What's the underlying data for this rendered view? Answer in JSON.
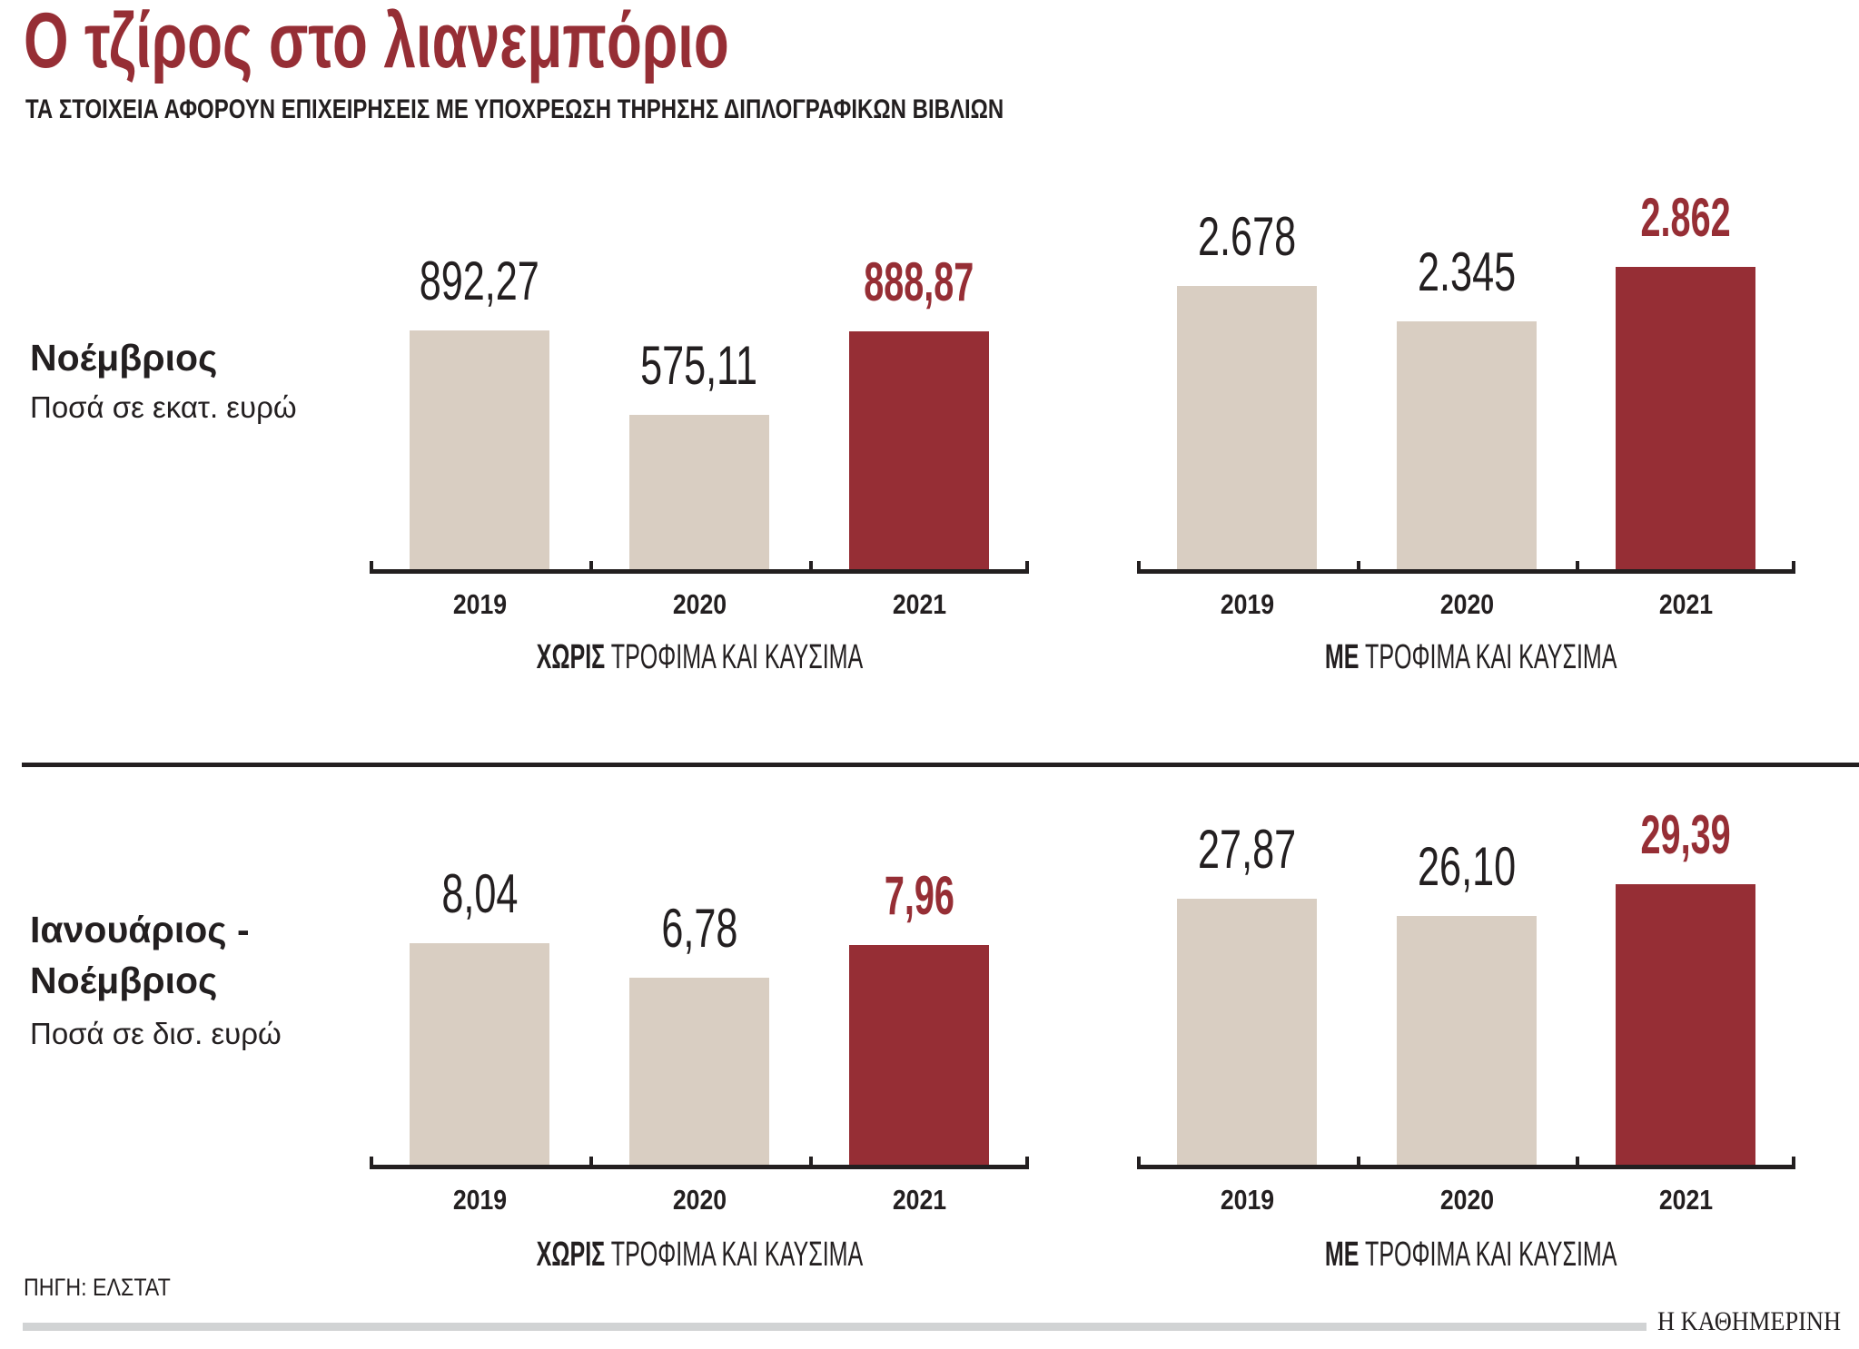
{
  "header": {
    "title": "Ο τζίρος στο λιανεμπόριο",
    "subtitle": "ΤΑ ΣΤΟΙΧΕΙΑ ΑΦΟΡΟΥΝ ΕΠΙΧΕΙΡΗΣΕΙΣ ΜΕ ΥΠΟΧΡΕΩΣΗ ΤΗΡΗΣΗΣ ΔΙΠΛΟΓΡΑΦΙΚΩΝ ΒΙΒΛΙΩΝ"
  },
  "rows": [
    {
      "label_line1": "Νοέμβριος",
      "label_line2": "",
      "unit": "Ποσά σε εκατ. ευρώ"
    },
    {
      "label_line1": "Ιανουάριος -",
      "label_line2": "Νοέμβριος",
      "unit": "Ποσά σε δισ. ευρώ"
    }
  ],
  "captions": {
    "without_bold": "ΧΩΡΙΣ",
    "with_bold": "ΜΕ",
    "rest": " ΤΡΟΦΙΜΑ ΚΑΙ ΚΑΥΣΙΜΑ"
  },
  "colors": {
    "accent": "#962e35",
    "bar_normal": "#d9cec2",
    "text": "#231f20",
    "footer_bar": "#d1d3d4"
  },
  "footer": {
    "source": "ΠΗΓΗ: ΕΛΣΤΑΤ",
    "logo": "Η ΚΑΘΗΜΕΡΙΝΗ"
  },
  "chart_data": [
    {
      "type": "bar",
      "title": "Νοέμβριος — ΧΩΡΙΣ ΤΡΟΦΙΜΑ ΚΑΙ ΚΑΥΣΙΜΑ",
      "ylabel": "Ποσά σε εκατ. ευρώ",
      "xlabel": "ΧΩΡΙΣ ΤΡΟΦΙΜΑ ΚΑΙ ΚΑΥΣΙΜΑ",
      "categories": [
        "2019",
        "2020",
        "2021"
      ],
      "values": [
        892.27,
        575.11,
        888.87
      ],
      "value_labels": [
        "892,27",
        "575,11",
        "888,87"
      ],
      "highlight_index": 2,
      "grid": false
    },
    {
      "type": "bar",
      "title": "Νοέμβριος — ΜΕ ΤΡΟΦΙΜΑ ΚΑΙ ΚΑΥΣΙΜΑ",
      "ylabel": "Ποσά σε εκατ. ευρώ",
      "xlabel": "ΜΕ ΤΡΟΦΙΜΑ ΚΑΙ ΚΑΥΣΙΜΑ",
      "categories": [
        "2019",
        "2020",
        "2021"
      ],
      "values": [
        2678,
        2345,
        2862
      ],
      "value_labels": [
        "2.678",
        "2.345",
        "2.862"
      ],
      "highlight_index": 2,
      "grid": false
    },
    {
      "type": "bar",
      "title": "Ιανουάριος - Νοέμβριος — ΧΩΡΙΣ ΤΡΟΦΙΜΑ ΚΑΙ ΚΑΥΣΙΜΑ",
      "ylabel": "Ποσά σε δισ. ευρώ",
      "xlabel": "ΧΩΡΙΣ ΤΡΟΦΙΜΑ ΚΑΙ ΚΑΥΣΙΜΑ",
      "categories": [
        "2019",
        "2020",
        "2021"
      ],
      "values": [
        8.04,
        6.78,
        7.96
      ],
      "value_labels": [
        "8,04",
        "6,78",
        "7,96"
      ],
      "highlight_index": 2,
      "grid": false
    },
    {
      "type": "bar",
      "title": "Ιανουάριος - Νοέμβριος — ΜΕ ΤΡΟΦΙΜΑ ΚΑΙ ΚΑΥΣΙΜΑ",
      "ylabel": "Ποσά σε δισ. ευρώ",
      "xlabel": "ΜΕ ΤΡΟΦΙΜΑ ΚΑΙ ΚΑΥΣΙΜΑ",
      "categories": [
        "2019",
        "2020",
        "2021"
      ],
      "values": [
        27.87,
        26.1,
        29.39
      ],
      "value_labels": [
        "27,87",
        "26,10",
        "29,39"
      ],
      "highlight_index": 2,
      "grid": false
    }
  ]
}
